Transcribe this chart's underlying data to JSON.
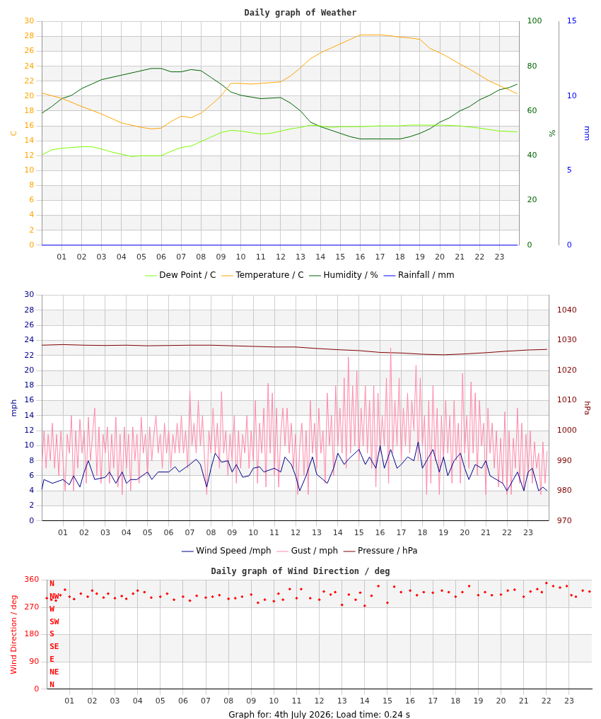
{
  "chart_data": [
    {
      "type": "line",
      "title": "Daily graph of Weather",
      "ylabel": "C",
      "y2label": "%",
      "y3label": "mm",
      "legend": "bottom",
      "grid": true,
      "xlim": [
        0,
        24
      ],
      "xticks": [
        {
          "value": 1,
          "label": "01"
        },
        {
          "value": 2,
          "label": "02"
        },
        {
          "value": 3,
          "label": "03"
        },
        {
          "value": 4,
          "label": "04"
        },
        {
          "value": 5,
          "label": "05"
        },
        {
          "value": 6,
          "label": "06"
        },
        {
          "value": 7,
          "label": "07"
        },
        {
          "value": 8,
          "label": "08"
        },
        {
          "value": 9,
          "label": "09"
        },
        {
          "value": 10,
          "label": "10"
        },
        {
          "value": 11,
          "label": "11"
        },
        {
          "value": 12,
          "label": "12"
        },
        {
          "value": 13,
          "label": "13"
        },
        {
          "value": 14,
          "label": "14"
        },
        {
          "value": 15,
          "label": "15"
        },
        {
          "value": 16,
          "label": "16"
        },
        {
          "value": 17,
          "label": "17"
        },
        {
          "value": 18,
          "label": "18"
        },
        {
          "value": 19,
          "label": "19"
        },
        {
          "value": 20,
          "label": "20"
        },
        {
          "value": 21,
          "label": "21"
        },
        {
          "value": 22,
          "label": "22"
        },
        {
          "value": 23,
          "label": "23"
        }
      ],
      "ylim": [
        0,
        30
      ],
      "yticks": [
        0,
        2,
        4,
        6,
        8,
        10,
        12,
        14,
        16,
        18,
        20,
        22,
        24,
        26,
        28,
        30
      ],
      "y2lim": [
        0,
        100
      ],
      "y2ticks": [
        0,
        20,
        40,
        60,
        80,
        100
      ],
      "y3lim": [
        0,
        15
      ],
      "y3ticks": [
        0,
        5,
        10,
        15
      ],
      "series": [
        {
          "name": "Dew Point / C",
          "color": "#7cfc00",
          "x": [
            0,
            0.5,
            1,
            2,
            2.5,
            3,
            3.5,
            4,
            4.5,
            5,
            6,
            6.5,
            7,
            7.5,
            8,
            8.5,
            9,
            9.5,
            10,
            10.5,
            11,
            11.5,
            12,
            12.5,
            13,
            13.5,
            14,
            14.5,
            15,
            16,
            17,
            18,
            18.5,
            19,
            20,
            21,
            22,
            22.5,
            23,
            23.9
          ],
          "values": [
            12.1,
            12.8,
            13,
            13.2,
            13.2,
            12.9,
            12.5,
            12.2,
            11.9,
            12,
            12,
            12.6,
            13.1,
            13.3,
            13.9,
            14.5,
            15.1,
            15.4,
            15.3,
            15.1,
            14.9,
            15,
            15.3,
            15.6,
            15.8,
            16.1,
            16,
            15.8,
            15.9,
            15.9,
            16,
            16,
            16.1,
            16.1,
            16.1,
            16,
            15.7,
            15.5,
            15.3,
            15.2
          ]
        },
        {
          "name": "Temperature / C",
          "color": "#ffa500",
          "x": [
            0,
            1,
            2,
            3,
            4,
            5,
            5.5,
            6,
            6.5,
            7,
            7.5,
            8,
            8.5,
            9,
            9.5,
            10,
            10.5,
            11,
            12,
            12.5,
            13,
            13.5,
            14,
            14.5,
            15,
            15.5,
            16,
            17,
            17.5,
            18,
            18.5,
            19,
            19.5,
            20,
            20.5,
            21,
            21.5,
            22,
            22.5,
            23,
            23.5,
            23.9
          ],
          "values": [
            20.4,
            19.7,
            18.6,
            17.6,
            16.4,
            15.8,
            15.6,
            15.7,
            16.6,
            17.3,
            17.1,
            17.7,
            18.8,
            20,
            21.7,
            21.7,
            21.6,
            21.7,
            21.9,
            22.7,
            23.8,
            25,
            25.8,
            26.4,
            27,
            27.6,
            28.2,
            28.2,
            28.1,
            27.9,
            27.8,
            27.6,
            26.4,
            25.8,
            25.1,
            24.3,
            23.6,
            22.8,
            22,
            21.4,
            20.8,
            20.3
          ]
        },
        {
          "name": "Humidity / %",
          "color": "#006400",
          "axis": "y2",
          "x": [
            0,
            0.5,
            1,
            1.5,
            2,
            2.5,
            3,
            4,
            5,
            5.5,
            6,
            6.5,
            7,
            7.5,
            8,
            8.5,
            9,
            9.5,
            10,
            11,
            12,
            12.5,
            13,
            13.5,
            14,
            14.5,
            15,
            15.5,
            16,
            17,
            18,
            18.5,
            19,
            19.5,
            20,
            20.5,
            21,
            21.5,
            22,
            22.5,
            23,
            23.5,
            23.9
          ],
          "values": [
            59,
            62,
            65.5,
            67,
            70,
            72,
            74,
            76,
            78,
            79,
            79,
            77.5,
            77.5,
            78.5,
            78,
            75,
            72,
            68.5,
            67,
            65.5,
            66,
            63.5,
            60,
            55,
            53,
            51.5,
            50,
            48.5,
            47.5,
            47.5,
            47.5,
            48.5,
            50,
            52,
            55,
            57,
            60,
            62,
            65,
            67,
            69.5,
            70.5,
            72
          ]
        },
        {
          "name": "Rainfall / mm",
          "color": "#0000ff",
          "axis": "y3",
          "x": [
            0,
            23.9
          ],
          "values": [
            0,
            0
          ]
        }
      ]
    },
    {
      "type": "line",
      "ylabel": "mph",
      "y2label": "hPa",
      "legend": "bottom",
      "grid": true,
      "xlim": [
        0,
        24
      ],
      "xticks": [
        {
          "value": 1,
          "label": "01"
        },
        {
          "value": 2,
          "label": "02"
        },
        {
          "value": 3,
          "label": "03"
        },
        {
          "value": 4,
          "label": "04"
        },
        {
          "value": 5,
          "label": "05"
        },
        {
          "value": 6,
          "label": "06"
        },
        {
          "value": 7,
          "label": "07"
        },
        {
          "value": 8,
          "label": "08"
        },
        {
          "value": 9,
          "label": "09"
        },
        {
          "value": 10,
          "label": "10"
        },
        {
          "value": 11,
          "label": "11"
        },
        {
          "value": 12,
          "label": "12"
        },
        {
          "value": 13,
          "label": "13"
        },
        {
          "value": 14,
          "label": "14"
        },
        {
          "value": 15,
          "label": "15"
        },
        {
          "value": 16,
          "label": "16"
        },
        {
          "value": 17,
          "label": "17"
        },
        {
          "value": 18,
          "label": "18"
        },
        {
          "value": 19,
          "label": "19"
        },
        {
          "value": 20,
          "label": "20"
        },
        {
          "value": 21,
          "label": "21"
        },
        {
          "value": 22,
          "label": "22"
        },
        {
          "value": 23,
          "label": "23"
        }
      ],
      "ylim": [
        0,
        30
      ],
      "yticks": [
        0,
        2,
        4,
        6,
        8,
        10,
        12,
        14,
        16,
        18,
        20,
        22,
        24,
        26,
        28,
        30
      ],
      "y2lim": [
        970,
        1045
      ],
      "y2ticks": [
        970,
        980,
        990,
        1000,
        1010,
        1020,
        1030,
        1040
      ],
      "series": [
        {
          "name": "Wind Speed /mph",
          "color": "#00008b",
          "x": [
            0,
            0.1,
            0.5,
            1,
            1.3,
            1.5,
            1.8,
            2,
            2.2,
            2.5,
            3,
            3.2,
            3.5,
            3.8,
            4,
            4.2,
            4.5,
            5,
            5.2,
            5.5,
            6,
            6.3,
            6.5,
            7,
            7.3,
            7.5,
            7.8,
            8,
            8.2,
            8.5,
            8.8,
            9,
            9.2,
            9.5,
            9.8,
            10,
            10.3,
            10.5,
            11,
            11.3,
            11.5,
            11.8,
            12,
            12.2,
            12.5,
            12.8,
            13,
            13.3,
            13.5,
            13.8,
            14,
            14.3,
            14.5,
            15,
            15.3,
            15.5,
            15.8,
            16,
            16.2,
            16.5,
            16.8,
            17,
            17.3,
            17.6,
            17.8,
            18,
            18.3,
            18.5,
            18.8,
            19,
            19.2,
            19.5,
            19.8,
            20,
            20.2,
            20.5,
            20.8,
            21,
            21.2,
            21.5,
            21.8,
            22,
            22.3,
            22.5,
            22.8,
            23,
            23.2,
            23.5,
            23.7,
            23.9
          ],
          "values": [
            4.2,
            5.5,
            5,
            5.5,
            4.8,
            6,
            4.5,
            6.5,
            8,
            5.5,
            5.8,
            6.5,
            5,
            6.5,
            5,
            5.5,
            5.5,
            6.5,
            5.5,
            6.5,
            6.5,
            7.2,
            6.5,
            7.5,
            8.2,
            7.5,
            4.5,
            7,
            9,
            7.8,
            8,
            6.5,
            7.5,
            5.8,
            6,
            7,
            7.2,
            6.5,
            7,
            6.5,
            8.5,
            7.5,
            6,
            4,
            6,
            8.5,
            6.2,
            5.5,
            5,
            7,
            9,
            7.5,
            8.2,
            9.5,
            7.5,
            8.5,
            7,
            10,
            7,
            9.5,
            7,
            7.5,
            8.5,
            8,
            10.5,
            7,
            8.5,
            9.5,
            6.5,
            8.5,
            6,
            8,
            9,
            7,
            5.5,
            7.5,
            7,
            8,
            6,
            5.5,
            5,
            4,
            5.5,
            6.5,
            4,
            6.5,
            7,
            4,
            4.5,
            4
          ]
        },
        {
          "name": "Gust / mph",
          "color": "#ff88aa",
          "x": [
            0,
            0.1,
            0.2,
            0.3,
            0.4,
            0.5,
            0.6,
            0.7,
            0.8,
            0.9,
            1,
            1.1,
            1.2,
            1.3,
            1.4,
            1.5,
            1.6,
            1.7,
            1.8,
            1.9,
            2,
            2.1,
            2.2,
            2.3,
            2.4,
            2.5,
            2.6,
            2.7,
            2.8,
            2.9,
            3,
            3.1,
            3.2,
            3.3,
            3.4,
            3.5,
            3.6,
            3.7,
            3.8,
            3.9,
            4,
            4.1,
            4.2,
            4.3,
            4.4,
            4.5,
            4.6,
            4.7,
            4.8,
            4.9,
            5,
            5.1,
            5.2,
            5.3,
            5.4,
            5.5,
            5.6,
            5.7,
            5.8,
            5.9,
            6,
            6.1,
            6.2,
            6.3,
            6.4,
            6.5,
            6.6,
            6.7,
            6.8,
            6.9,
            7,
            7.1,
            7.2,
            7.3,
            7.4,
            7.5,
            7.6,
            7.7,
            7.8,
            7.9,
            8,
            8.1,
            8.2,
            8.3,
            8.4,
            8.5,
            8.6,
            8.7,
            8.8,
            8.9,
            9,
            9.1,
            9.2,
            9.3,
            9.4,
            9.5,
            9.6,
            9.7,
            9.8,
            9.9,
            10,
            10.1,
            10.2,
            10.3,
            10.4,
            10.5,
            10.6,
            10.7,
            10.8,
            10.9,
            11,
            11.1,
            11.2,
            11.3,
            11.4,
            11.5,
            11.6,
            11.7,
            11.8,
            11.9,
            12,
            12.1,
            12.2,
            12.3,
            12.4,
            12.5,
            12.6,
            12.7,
            12.8,
            12.9,
            13,
            13.1,
            13.2,
            13.3,
            13.4,
            13.5,
            13.6,
            13.7,
            13.8,
            13.9,
            14,
            14.1,
            14.2,
            14.3,
            14.4,
            14.5,
            14.6,
            14.7,
            14.8,
            14.9,
            15,
            15.1,
            15.2,
            15.3,
            15.4,
            15.5,
            15.6,
            15.7,
            15.8,
            15.9,
            16,
            16.1,
            16.2,
            16.3,
            16.4,
            16.5,
            16.6,
            16.7,
            16.8,
            16.9,
            17,
            17.1,
            17.2,
            17.3,
            17.4,
            17.5,
            17.6,
            17.7,
            17.8,
            17.9,
            18,
            18.1,
            18.2,
            18.3,
            18.4,
            18.5,
            18.6,
            18.7,
            18.8,
            18.9,
            19,
            19.1,
            19.2,
            19.3,
            19.4,
            19.5,
            19.6,
            19.7,
            19.8,
            19.9,
            20,
            20.1,
            20.2,
            20.3,
            20.4,
            20.5,
            20.6,
            20.7,
            20.8,
            20.9,
            21,
            21.1,
            21.2,
            21.3,
            21.4,
            21.5,
            21.6,
            21.7,
            21.8,
            21.9,
            22,
            22.1,
            22.2,
            22.3,
            22.4,
            22.5,
            22.6,
            22.7,
            22.8,
            22.9,
            23,
            23.1,
            23.2,
            23.3,
            23.4,
            23.5,
            23.6,
            23.7,
            23.8,
            23.9
          ],
          "values": [
            7,
            12,
            7,
            11.5,
            8,
            13,
            7,
            11.5,
            6,
            12,
            8,
            4,
            11.5,
            9,
            14,
            4,
            12,
            7,
            13.5,
            9,
            12,
            5,
            13.8,
            8,
            11.5,
            15,
            6,
            12.5,
            5,
            11.5,
            9,
            12.5,
            5,
            11.5,
            7,
            13.8,
            4.5,
            11.5,
            3.5,
            12.5,
            7,
            11.5,
            4,
            12.5,
            8,
            11.5,
            5,
            13.8,
            9,
            11.5,
            6,
            12.5,
            8,
            11.5,
            14,
            9,
            11.5,
            7,
            13,
            9,
            12,
            7,
            11.5,
            9,
            13,
            9,
            14,
            9,
            12,
            7,
            17.3,
            10,
            13,
            9,
            16,
            10,
            14,
            8,
            3.5,
            12,
            9,
            15,
            9,
            13,
            7,
            17.2,
            9,
            12,
            6,
            11.5,
            8,
            14,
            5,
            12,
            7,
            11.5,
            9,
            14,
            7,
            12,
            8,
            16,
            5,
            13,
            9,
            15,
            4.5,
            18.3,
            9,
            17,
            6,
            15,
            4.5,
            11.5,
            15,
            10,
            15,
            9,
            13,
            7,
            11.5,
            3.5,
            10,
            13,
            6,
            12,
            3.5,
            16,
            9,
            13,
            7,
            15,
            9,
            12,
            5,
            17,
            10,
            14,
            6,
            18,
            10,
            15,
            9,
            19,
            7,
            21.8,
            9,
            18,
            10,
            20,
            8,
            15,
            10,
            18,
            9,
            16,
            7,
            18,
            4.5,
            17,
            9,
            14,
            10,
            19,
            5,
            23,
            9,
            16,
            10,
            19,
            8,
            15,
            10,
            17,
            9,
            16,
            12,
            20.7,
            8,
            19,
            10,
            14,
            3.5,
            16,
            5,
            18,
            8,
            15,
            3.5,
            14,
            8,
            16,
            9,
            14,
            5,
            16,
            8,
            13,
            5,
            19.6,
            9,
            14,
            7,
            18.5,
            9,
            17,
            6,
            16,
            10,
            13,
            3.5,
            15,
            9,
            13,
            7,
            12,
            4.5,
            11,
            5,
            14.5,
            3.5,
            12,
            3.5,
            11,
            7,
            15,
            5,
            13,
            4,
            11.5,
            6,
            12,
            5,
            10.5,
            7,
            9,
            3.5,
            10.5,
            5,
            9.3
          ]
        },
        {
          "name": "Pressure / hPa",
          "color": "#800000",
          "axis": "y2",
          "x": [
            0,
            1,
            2,
            3,
            4,
            5,
            6,
            7,
            8,
            9,
            10,
            11,
            12,
            13,
            14,
            15,
            16,
            17,
            18,
            19,
            20,
            21,
            22,
            23,
            23.9
          ],
          "values": [
            1028.4,
            1028.6,
            1028.4,
            1028.3,
            1028.4,
            1028.2,
            1028.3,
            1028.4,
            1028.4,
            1028.2,
            1028,
            1027.8,
            1027.8,
            1027.3,
            1026.9,
            1026.6,
            1026,
            1025.8,
            1025.4,
            1025.2,
            1025.5,
            1025.9,
            1026.4,
            1026.8,
            1027
          ]
        }
      ]
    },
    {
      "type": "scatter",
      "title": "Daily graph of Wind Direction / deg",
      "ylabel": "Wind Direction / deg",
      "legend": false,
      "grid": true,
      "marker": "diamond",
      "annotations": [
        "N",
        "NE",
        "E",
        "SE",
        "S",
        "SW",
        "W",
        "NW",
        "N",
        "Graph for: 4th July 2026; Load time: 0.24 s"
      ],
      "xlim": [
        0,
        24
      ],
      "xticks": [
        {
          "value": 1,
          "label": "01"
        },
        {
          "value": 2,
          "label": "02"
        },
        {
          "value": 3,
          "label": "03"
        },
        {
          "value": 4,
          "label": "04"
        },
        {
          "value": 5,
          "label": "05"
        },
        {
          "value": 6,
          "label": "06"
        },
        {
          "value": 7,
          "label": "07"
        },
        {
          "value": 8,
          "label": "08"
        },
        {
          "value": 9,
          "label": "09"
        },
        {
          "value": 10,
          "label": "10"
        },
        {
          "value": 11,
          "label": "11"
        },
        {
          "value": 12,
          "label": "12"
        },
        {
          "value": 13,
          "label": "13"
        },
        {
          "value": 14,
          "label": "14"
        },
        {
          "value": 15,
          "label": "15"
        },
        {
          "value": 16,
          "label": "16"
        },
        {
          "value": 17,
          "label": "17"
        },
        {
          "value": 18,
          "label": "18"
        },
        {
          "value": 19,
          "label": "19"
        },
        {
          "value": 20,
          "label": "20"
        },
        {
          "value": 21,
          "label": "21"
        },
        {
          "value": 22,
          "label": "22"
        },
        {
          "value": 23,
          "label": "23"
        }
      ],
      "ylim": [
        0,
        360
      ],
      "yticks": [
        0,
        90,
        180,
        270,
        360
      ],
      "series": [
        {
          "color": "#ff0000",
          "x": [
            0,
            0.2,
            0.4,
            0.6,
            0.8,
            1,
            1.2,
            1.5,
            1.8,
            2,
            2.2,
            2.5,
            2.7,
            3,
            3.3,
            3.5,
            3.8,
            4,
            4.3,
            4.6,
            5,
            5.3,
            5.6,
            6,
            6.3,
            6.6,
            7,
            7.3,
            7.6,
            8,
            8.3,
            8.6,
            9,
            9.3,
            9.6,
            10,
            10.2,
            10.4,
            10.7,
            11,
            11.2,
            11.6,
            12,
            12.2,
            12.5,
            12.7,
            13,
            13.3,
            13.6,
            13.8,
            14,
            14.3,
            14.6,
            15,
            15.3,
            15.6,
            16,
            16.3,
            16.6,
            17,
            17.4,
            17.7,
            18,
            18.3,
            18.6,
            19,
            19.3,
            19.6,
            20,
            20.3,
            20.6,
            21,
            21.3,
            21.6,
            21.8,
            22,
            22.3,
            22.6,
            22.9,
            23.1,
            23.3,
            23.6,
            23.9
          ],
          "values": [
            300,
            295,
            292,
            310,
            328,
            305,
            297,
            315,
            305,
            325,
            315,
            302,
            315,
            300,
            307,
            298,
            315,
            325,
            320,
            302,
            305,
            315,
            295,
            305,
            292,
            308,
            302,
            305,
            310,
            298,
            300,
            305,
            312,
            285,
            295,
            290,
            315,
            295,
            330,
            300,
            330,
            300,
            295,
            322,
            312,
            320,
            278,
            312,
            295,
            318,
            275,
            308,
            340,
            285,
            338,
            320,
            325,
            310,
            320,
            318,
            325,
            320,
            305,
            320,
            340,
            310,
            320,
            310,
            312,
            325,
            328,
            305,
            322,
            330,
            320,
            350,
            340,
            335,
            340,
            310,
            305,
            325,
            322
          ]
        }
      ]
    }
  ]
}
